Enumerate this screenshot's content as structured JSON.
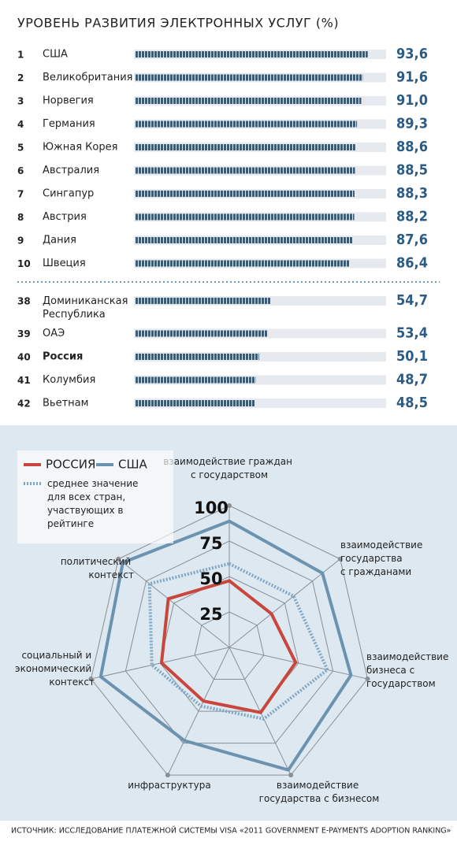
{
  "chart_data": [
    {
      "type": "bar",
      "title": "УРОВЕНЬ РАЗВИТИЯ ЭЛЕКТРОННЫХ УСЛУГ (%)",
      "ranks": [
        1,
        2,
        3,
        4,
        5,
        6,
        7,
        8,
        9,
        10,
        38,
        39,
        40,
        41,
        42
      ],
      "categories": [
        "США",
        "Великобритания",
        "Норвегия",
        "Германия",
        "Южная Корея",
        "Австралия",
        "Сингапур",
        "Австрия",
        "Дания",
        "Швеция",
        "Доминиканская Республика",
        "ОАЭ",
        "Россия",
        "Колумбия",
        "Вьетнам"
      ],
      "values": [
        93.6,
        91.6,
        91.0,
        89.3,
        88.6,
        88.5,
        88.3,
        88.2,
        87.6,
        86.4,
        54.7,
        53.4,
        50.1,
        48.7,
        48.5
      ],
      "value_labels": [
        "93,6",
        "91,6",
        "91,0",
        "89,3",
        "88,6",
        "88,5",
        "88,3",
        "88,2",
        "87,6",
        "86,4",
        "54,7",
        "53,4",
        "50,1",
        "48,7",
        "48,5"
      ],
      "color": "#3e5b74",
      "xlim": [
        0,
        100
      ]
    },
    {
      "type": "radar",
      "categories": [
        "взаимодействие граждан с государством",
        "взаимодействие государства с гражданами",
        "взаимодействие бизнеса с государством",
        "взаимодействие государства с бизнесом",
        "инфраструктура",
        "социальный и экономический контекст",
        "политический контекст"
      ],
      "series": [
        {
          "name": "РОССИЯ",
          "color": "#c9463d",
          "linestyle": "solid",
          "values": [
            47,
            38,
            48,
            51,
            42,
            49,
            55
          ]
        },
        {
          "name": "США",
          "color": "#6b93b0",
          "linestyle": "solid",
          "values": [
            89,
            84,
            88,
            96,
            73,
            93,
            96
          ]
        },
        {
          "name": "среднее значение для всех стран, участвующих в рейтинге",
          "color": "#7fa6c3",
          "linestyle": "dotted",
          "values": [
            59,
            58,
            71,
            56,
            46,
            56,
            72
          ]
        }
      ],
      "rlim": [
        0,
        100
      ],
      "rticks": [
        25,
        50,
        75,
        100
      ]
    }
  ],
  "source": "ИСТОЧНИК: ИССЛЕДОВАНИЕ ПЛАТЕЖНОЙ СИСТЕМЫ VISA «2011 GOVERNMENT E-PAYMENTS ADOPTION RANKING»"
}
